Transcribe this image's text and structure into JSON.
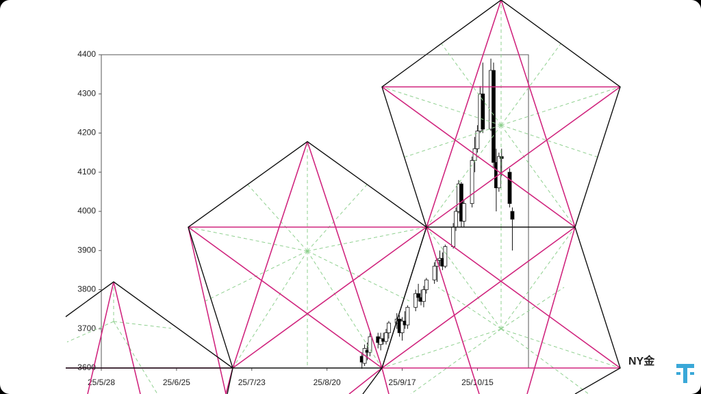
{
  "chart_data": {
    "type": "candlestick",
    "label": "NY金",
    "x": [
      "25/9/2",
      "25/9/3",
      "25/9/4",
      "25/9/5",
      "25/9/8",
      "25/9/9",
      "25/9/10",
      "25/9/11",
      "25/9/12",
      "25/9/15",
      "25/9/16",
      "25/9/17",
      "25/9/18",
      "25/9/19",
      "25/9/22",
      "25/9/23",
      "25/9/24",
      "25/9/25",
      "25/9/26",
      "25/9/29",
      "25/9/30",
      "25/10/1",
      "25/10/2",
      "25/10/3",
      "25/10/6",
      "25/10/7",
      "25/10/8",
      "25/10/9",
      "25/10/10",
      "25/10/13",
      "25/10/14",
      "25/10/15",
      "25/10/16",
      "25/10/17",
      "25/10/20",
      "25/10/21",
      "25/10/22",
      "25/10/23",
      "25/10/24",
      "25/10/27",
      "25/10/28"
    ],
    "open": [
      3630,
      3612,
      3645,
      3640,
      3680,
      3660,
      3675,
      3668,
      3690,
      3715,
      3725,
      3690,
      3720,
      3710,
      3755,
      3790,
      3780,
      3770,
      3800,
      3825,
      3860,
      3875,
      3880,
      3860,
      3910,
      3960,
      4000,
      4070,
      3975,
      4020,
      4130,
      4160,
      4205,
      4300,
      4210,
      4360,
      4125,
      4060,
      4140,
      4100,
      4000
    ],
    "high": [
      3640,
      3660,
      3665,
      3690,
      3690,
      3690,
      3690,
      3700,
      3720,
      3740,
      3735,
      3730,
      3745,
      3760,
      3800,
      3815,
      3800,
      3810,
      3830,
      3870,
      3880,
      3900,
      3895,
      3915,
      3970,
      4010,
      4080,
      4075,
      4030,
      4140,
      4190,
      4220,
      4320,
      4380,
      4390,
      4380,
      4160,
      4150,
      4160,
      4110,
      4010
    ],
    "low": [
      3598,
      3605,
      3620,
      3630,
      3650,
      3645,
      3660,
      3660,
      3675,
      3700,
      3680,
      3670,
      3700,
      3700,
      3745,
      3770,
      3760,
      3755,
      3790,
      3815,
      3820,
      3860,
      3850,
      3855,
      3905,
      3950,
      3995,
      3960,
      3960,
      4010,
      4100,
      4150,
      4200,
      4200,
      4205,
      4110,
      4000,
      4050,
      4090,
      4010,
      3900
    ],
    "close": [
      3615,
      3650,
      3640,
      3680,
      3665,
      3675,
      3668,
      3690,
      3715,
      3725,
      3690,
      3720,
      3710,
      3755,
      3790,
      3780,
      3770,
      3800,
      3825,
      3860,
      3875,
      3880,
      3860,
      3910,
      3960,
      4000,
      4070,
      3975,
      4020,
      4130,
      4160,
      4205,
      4300,
      4210,
      4360,
      4125,
      4060,
      4140,
      4135,
      4020,
      3980
    ],
    "xlim": [
      "25/5/28",
      "25/11/3"
    ],
    "xticks": [
      "25/5/28",
      "25/6/25",
      "25/7/23",
      "25/8/20",
      "25/9/17",
      "25/10/15"
    ],
    "ylim": [
      3600,
      4400
    ],
    "yticks": [
      3600,
      3700,
      3800,
      3900,
      4000,
      4100,
      4200,
      4300,
      4400
    ],
    "up_color": "#ffffff",
    "down_color": "#000000"
  }
}
